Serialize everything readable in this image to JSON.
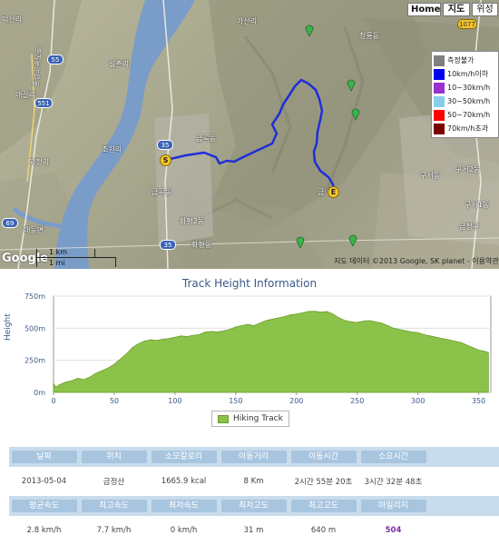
{
  "map": {
    "controls": {
      "home": "Home",
      "map": "지도",
      "satellite": "위성"
    },
    "labels": {
      "north_top": "덕산리",
      "gasan": "가산리",
      "cheongryong": "청룡동",
      "woldong": "월촌리",
      "daegal": "대갈리",
      "jopyeong": "조원리",
      "gwajeong": "괴정리",
      "geumgok_east": "금곡동",
      "geumgok": "금곡동",
      "hwapyeong2": "화평2동",
      "hwapyeong": "화평동",
      "daedong": "대동면",
      "gusung": "구서동",
      "gusung2": "구서2동",
      "gusung1": "구서1동",
      "geumjeong": "금정구",
      "geum": "금",
      "road_55_top": "55",
      "road_35": "35",
      "road_35_bottom": "35",
      "road_1077": "1077",
      "road_551": "551",
      "road_69": "69",
      "expressway": "중앙고속도로"
    },
    "legend": [
      {
        "label": "측정불가",
        "color": "#808080"
      },
      {
        "label": "10km/h이하",
        "color": "#0000ee"
      },
      {
        "label": "10~30km/h",
        "color": "#9b30d0"
      },
      {
        "label": "30~50km/h",
        "color": "#87ceeb"
      },
      {
        "label": "50~70km/h",
        "color": "#ff0000"
      },
      {
        "label": "70km/h초과",
        "color": "#7a0000"
      }
    ],
    "start_marker": "S",
    "end_marker": "E",
    "scale_km": "1 km",
    "scale_mi": "1 mi",
    "copyright": "지도 데이터 ©2013 Google, SK planet - 이용약관",
    "logo": "Google"
  },
  "chart_data": {
    "type": "area",
    "title": "Track Height Information",
    "ylabel": "Height",
    "xlabel": "",
    "x_ticks": [
      0,
      50,
      100,
      150,
      200,
      250,
      300,
      350
    ],
    "y_ticks": [
      "0m",
      "250m",
      "500m",
      "750m"
    ],
    "xlim": [
      0,
      360
    ],
    "ylim": [
      0,
      750
    ],
    "series": [
      {
        "name": "Hiking Track",
        "color": "#8bc34a",
        "x": [
          0,
          2,
          5,
          10,
          15,
          20,
          25,
          30,
          35,
          40,
          45,
          50,
          55,
          60,
          65,
          70,
          75,
          80,
          85,
          90,
          95,
          100,
          105,
          110,
          115,
          120,
          125,
          130,
          135,
          140,
          145,
          150,
          155,
          160,
          165,
          170,
          175,
          180,
          185,
          190,
          195,
          200,
          205,
          210,
          215,
          220,
          225,
          230,
          235,
          240,
          245,
          250,
          255,
          260,
          265,
          270,
          275,
          280,
          285,
          290,
          295,
          300,
          305,
          310,
          315,
          320,
          325,
          330,
          335,
          340,
          345,
          350,
          355,
          358
        ],
        "values": [
          70,
          40,
          60,
          80,
          90,
          110,
          100,
          120,
          150,
          170,
          190,
          220,
          260,
          300,
          350,
          380,
          400,
          410,
          405,
          415,
          420,
          430,
          440,
          435,
          445,
          450,
          470,
          475,
          470,
          480,
          490,
          510,
          520,
          530,
          520,
          540,
          560,
          570,
          580,
          590,
          605,
          610,
          620,
          630,
          632,
          625,
          630,
          610,
          580,
          560,
          550,
          545,
          555,
          560,
          550,
          540,
          520,
          500,
          490,
          480,
          470,
          465,
          450,
          440,
          430,
          420,
          410,
          400,
          390,
          370,
          350,
          330,
          320,
          310
        ]
      }
    ],
    "legend_label": "Hiking Track",
    "legend": "bottom-center"
  },
  "stats": {
    "headers1": [
      "날짜",
      "위치",
      "소모칼로리",
      "이동거리",
      "이동시간",
      "소요시간"
    ],
    "values1": [
      "2013-05-04",
      "금정산",
      "1665.9 kcal",
      "8 Km",
      "2시간 55분 20초",
      "3시간 32분 48초"
    ],
    "headers2": [
      "평균속도",
      "최고속도",
      "최저속도",
      "최저고도",
      "최고고도",
      "마일리지"
    ],
    "values2": [
      "2.8 km/h",
      "7.7 km/h",
      "0 km/h",
      "31 m",
      "640 m",
      "504"
    ]
  }
}
